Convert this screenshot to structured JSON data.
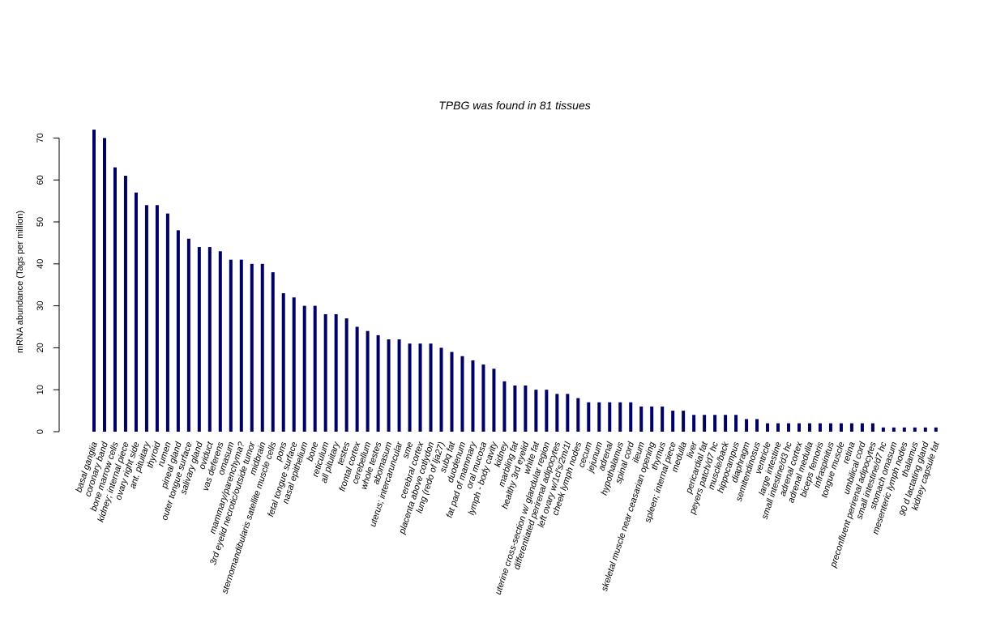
{
  "chart_data": {
    "type": "bar",
    "title": "TPBG  was found in  81  tissues",
    "xlabel": "",
    "ylabel": "mRNA abundance (Tags per million)",
    "ylim": [
      0,
      72
    ],
    "yticks": [
      "0",
      "10",
      "20",
      "30",
      "40",
      "50",
      "60",
      "70"
    ],
    "grid": false,
    "bar_color": "#000066",
    "categories": [
      "basal ganglia",
      "coronary band",
      "bone marrow cells",
      "kidney; internal piece",
      "ovary right side",
      "ant. pituitary",
      "thyroid",
      "rumen",
      "pineal gland",
      "outer tongue surface",
      "salivary gland",
      "oviduct",
      "vas deferens",
      "omasum",
      "mammary/parenchyma?",
      "3rd eyelid necrotic/outside tumor",
      "midbrain",
      "sternomandibularis satellite muscle cells",
      "pons",
      "fetal tongue surface",
      "nasal epithelium",
      "bone",
      "reticulum",
      "all pituitary",
      "testes",
      "frontal cortex",
      "cerebellum",
      "whole testes",
      "abomasum",
      "uterus; intercaruncular",
      "sme",
      "cerebral cortex",
      "placenta above cotlydon",
      "lung (redo of lja27)",
      "subq fat",
      "duodenum",
      "fat pad of mammary",
      "oral mucosa",
      "lymph - body cavity",
      "kidney",
      "marbling fat",
      "healthy 3rd eyelid",
      "white fat",
      "uterine cross-section w/ glandular region",
      "differentiated perirenal adipocytes",
      "left ovary w/1cl's/2m/1l",
      "cheek lymph nodes",
      "cecum",
      "jejunum",
      "adrenal",
      "hypothalamus",
      "spinal cord",
      "ileum",
      "skeletal muscle near ceasarian opening",
      "thymus",
      "spleen; internal piece",
      "medulla",
      "liver",
      "pericardial fat",
      "peyers patch/d7 hc",
      "muscle/back",
      "hippocampus",
      "diaphragm",
      "semitendinosus",
      "ventricle",
      "large intestine",
      "small intestine/d3 hc",
      "adrenal cortex",
      "adrenal medulla",
      "biceps femoris",
      "infraspinitus",
      "tongue muscle",
      "retina",
      "umbilical cord",
      "preconfluent perirenal adipocytes",
      "small intestine/d7 hc",
      "stomach omasum",
      "mesenteric lymph nodes",
      "thalamus",
      "90 d lactating gland",
      "kidney capsule fat"
    ],
    "values": [
      72,
      70,
      63,
      61,
      57,
      54,
      54,
      52,
      48,
      46,
      44,
      44,
      43,
      41,
      41,
      40,
      40,
      38,
      33,
      32,
      30,
      30,
      28,
      28,
      27,
      25,
      24,
      23,
      22,
      22,
      21,
      21,
      21,
      20,
      19,
      18,
      17,
      16,
      15,
      12,
      11,
      11,
      10,
      10,
      9,
      9,
      8,
      7,
      7,
      7,
      7,
      7,
      6,
      6,
      6,
      5,
      5,
      4,
      4,
      4,
      4,
      4,
      3,
      3,
      2,
      2,
      2,
      2,
      2,
      2,
      2,
      2,
      2,
      2,
      2,
      1,
      1,
      1,
      1,
      1,
      1
    ]
  }
}
